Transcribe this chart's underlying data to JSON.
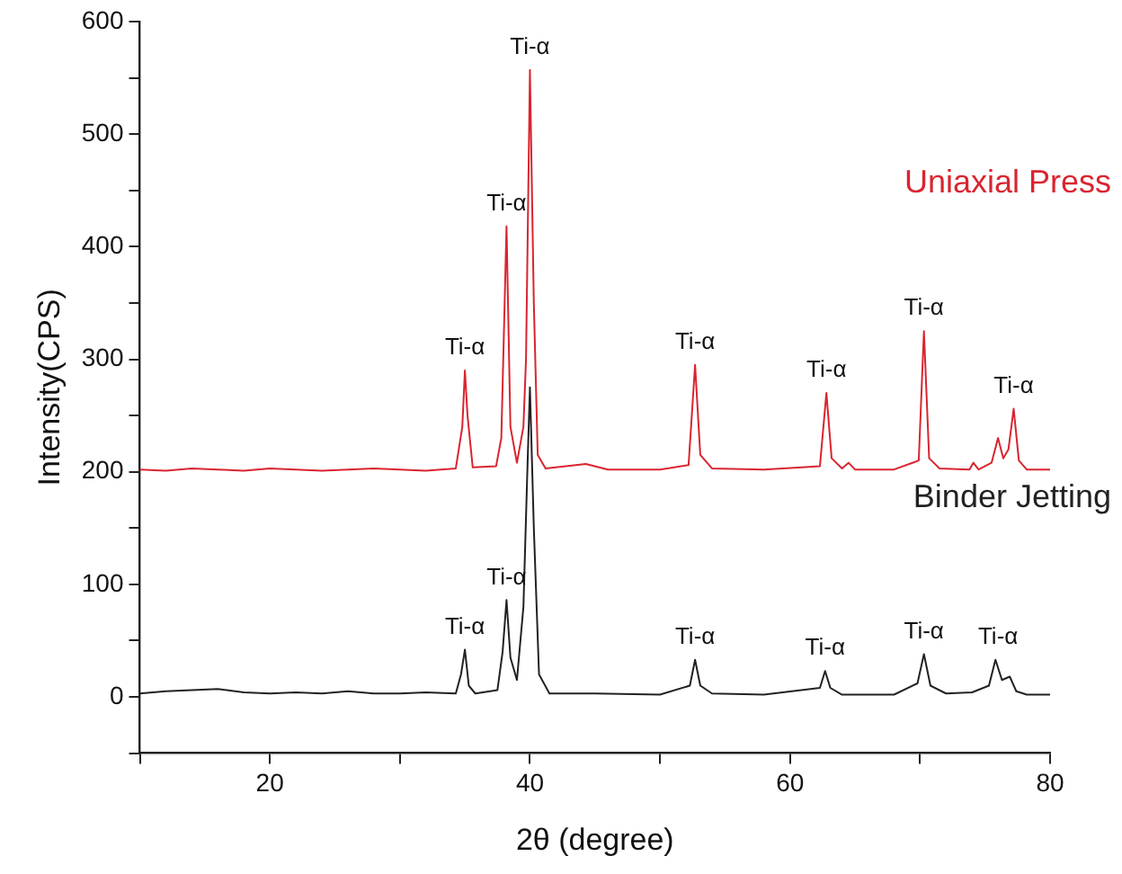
{
  "chart_data": {
    "type": "line",
    "xlabel": "2θ (degree)",
    "ylabel": "Intensity(CPS)",
    "xlim": [
      10,
      80
    ],
    "xticks": [
      {
        "value": 10,
        "label": null
      },
      20,
      {
        "value": 30,
        "label": null
      },
      40,
      {
        "value": 50,
        "label": null
      },
      60,
      {
        "value": 70,
        "label": null
      },
      80
    ],
    "ylim": [
      -50,
      600
    ],
    "yticks": [
      {
        "value": -50,
        "label": null
      },
      0,
      {
        "value": 50,
        "label": null
      },
      100,
      {
        "value": 150,
        "label": null
      },
      200,
      {
        "value": 250,
        "label": null
      },
      300,
      {
        "value": 350,
        "label": null
      },
      400,
      {
        "value": 450,
        "label": null
      },
      500,
      {
        "value": 550,
        "label": null
      },
      600
    ],
    "grid": false,
    "legend": false,
    "marker": "none",
    "line_style": "solid",
    "series": [
      {
        "name": "Uniaxial Press",
        "color": "#d9252f",
        "x": [
          10,
          12,
          14,
          16,
          18,
          20,
          22,
          24,
          26,
          28,
          30,
          32,
          34.3,
          34.8,
          35.0,
          35.2,
          35.6,
          37.4,
          37.8,
          38.2,
          38.5,
          39.0,
          39.5,
          39.7,
          40.0,
          40.3,
          40.6,
          41.2,
          44.3,
          46,
          50,
          52.2,
          52.7,
          53.1,
          54,
          58,
          62.3,
          62.8,
          63.2,
          64.0,
          64.5,
          65,
          68,
          69.9,
          70.3,
          70.7,
          71.5,
          73.8,
          74.1,
          74.5,
          75.5,
          76.0,
          76.4,
          76.8,
          77.2,
          77.6,
          78.2,
          80
        ],
        "values": [
          202,
          201,
          203,
          202,
          201,
          203,
          202,
          201,
          202,
          203,
          202,
          201,
          203,
          240,
          290,
          250,
          204,
          205,
          230,
          418,
          240,
          208,
          240,
          300,
          557,
          350,
          215,
          203,
          207,
          202,
          202,
          206,
          295,
          215,
          203,
          202,
          205,
          270,
          212,
          203,
          208,
          202,
          202,
          210,
          325,
          212,
          203,
          202,
          208,
          202,
          208,
          230,
          212,
          220,
          256,
          210,
          202,
          202
        ]
      },
      {
        "name": "Binder Jetting",
        "color": "#222222",
        "x": [
          10,
          12,
          14,
          16,
          18,
          20,
          22,
          24,
          26,
          28,
          30,
          32,
          34.3,
          34.7,
          35.0,
          35.3,
          35.8,
          37.5,
          37.9,
          38.2,
          38.5,
          39.0,
          39.5,
          39.8,
          40.0,
          40.3,
          40.7,
          41.5,
          45,
          50,
          52.3,
          52.7,
          53.1,
          54,
          58,
          62.3,
          62.7,
          63.1,
          64,
          68,
          69.8,
          70.3,
          70.8,
          72,
          74,
          75.3,
          75.8,
          76.3,
          76.9,
          77.4,
          78.2,
          80
        ],
        "values": [
          3,
          5,
          6,
          7,
          4,
          3,
          4,
          3,
          5,
          3,
          3,
          4,
          3,
          20,
          42,
          10,
          3,
          6,
          40,
          86,
          35,
          15,
          80,
          200,
          275,
          150,
          20,
          3,
          3,
          2,
          10,
          33,
          10,
          3,
          2,
          8,
          23,
          8,
          2,
          2,
          12,
          38,
          10,
          3,
          4,
          10,
          33,
          15,
          18,
          5,
          2,
          2
        ]
      }
    ],
    "annotations": [
      {
        "text": "Ti-α",
        "x": 35.0,
        "y": 290
      },
      {
        "text": "Ti-α",
        "x": 38.2,
        "y": 418
      },
      {
        "text": "Ti-α",
        "x": 40.0,
        "y": 557
      },
      {
        "text": "Ti-α",
        "x": 52.7,
        "y": 295
      },
      {
        "text": "Ti-α",
        "x": 62.8,
        "y": 270
      },
      {
        "text": "Ti-α",
        "x": 70.3,
        "y": 325
      },
      {
        "text": "Ti-α",
        "x": 77.2,
        "y": 256
      },
      {
        "text": "Ti-α",
        "x": 35.0,
        "y": 42
      },
      {
        "text": "Ti-α",
        "x": 38.2,
        "y": 86
      },
      {
        "text": "Ti-α",
        "x": 52.7,
        "y": 33
      },
      {
        "text": "Ti-α",
        "x": 62.7,
        "y": 23
      },
      {
        "text": "Ti-α",
        "x": 70.3,
        "y": 38
      },
      {
        "text": "Ti-α",
        "x": 76.0,
        "y": 33
      }
    ]
  }
}
